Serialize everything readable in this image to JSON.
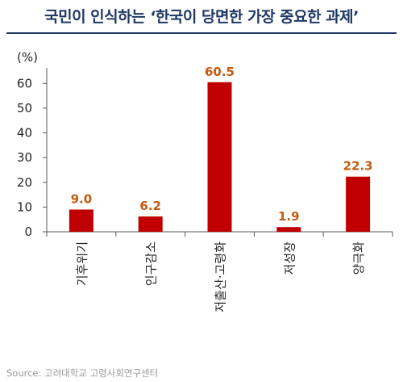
{
  "title": "국민이 인식하는 ‘한국이 당면한 가장 중요한 과제’",
  "source": "Source: 고려대학교 고령사회연구센터",
  "colors": {
    "bar": "#c00000",
    "label": "#c55a11",
    "title": "#1f3864",
    "axis": "#595959"
  },
  "chart_data": {
    "type": "bar",
    "title": "국민이 인식하는 ‘한국이 당면한 가장 중요한 과제’",
    "ylabel": "(%)",
    "xlabel": "",
    "ylim": [
      0,
      70
    ],
    "yticks": [
      0,
      10,
      20,
      30,
      40,
      50,
      60
    ],
    "categories": [
      "기후위기",
      "인구감소",
      "저출산·고령화",
      "저성장",
      "양극화"
    ],
    "values": [
      9.0,
      6.2,
      60.5,
      1.9,
      22.3
    ],
    "value_labels": [
      "9.0",
      "6.2",
      "60.5",
      "1.9",
      "22.3"
    ],
    "grid": false,
    "legend": "none"
  }
}
